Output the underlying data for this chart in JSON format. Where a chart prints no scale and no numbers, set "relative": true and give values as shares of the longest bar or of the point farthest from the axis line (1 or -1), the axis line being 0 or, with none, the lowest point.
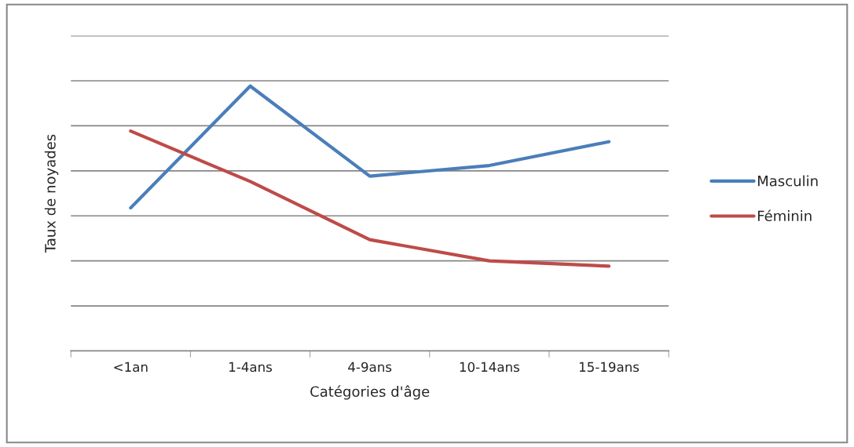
{
  "chart_data": {
    "type": "line",
    "relative": true,
    "xlabel": "Catégories d'âge",
    "ylabel": "Taux de noyades",
    "categories": [
      "<1an",
      "1-4ans",
      "4-9ans",
      "10-14ans",
      "15-19ans"
    ],
    "series": [
      {
        "name": "Masculin",
        "color": "#4a7ebb",
        "values": [
          0.54,
          1,
          0.66,
          0.7,
          0.79
        ]
      },
      {
        "name": "Féminin",
        "color": "#be4b48",
        "values": [
          0.83,
          0.64,
          0.42,
          0.34,
          0.32
        ]
      }
    ],
    "grid": "y",
    "legend": "right",
    "marker": "none",
    "line_style": "solid"
  }
}
